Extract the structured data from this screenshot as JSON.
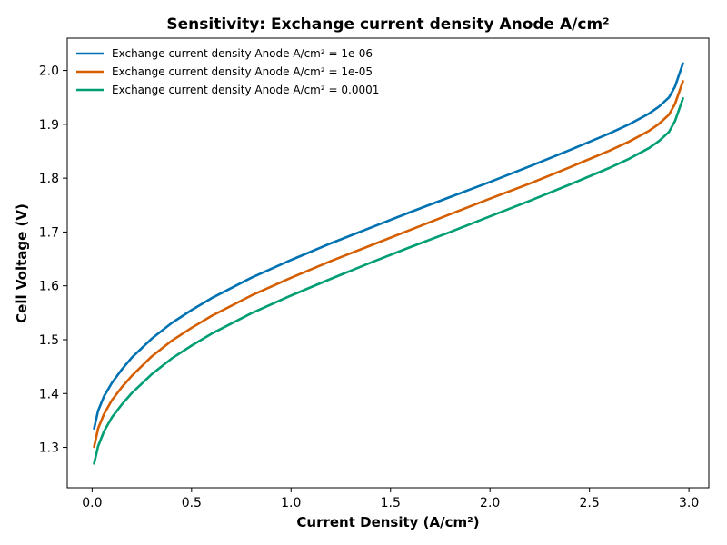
{
  "chart_data": {
    "type": "line",
    "title": "Sensitivity: Exchange current density Anode A/cm²",
    "xlabel": "Current Density (A/cm²)",
    "ylabel": "Cell Voltage (V)",
    "xlim": [
      -0.125,
      3.1
    ],
    "ylim": [
      1.225,
      2.06
    ],
    "xticks": [
      0.0,
      0.5,
      1.0,
      1.5,
      2.0,
      2.5,
      3.0
    ],
    "xtick_labels": [
      "0.0",
      "0.5",
      "1.0",
      "1.5",
      "2.0",
      "2.5",
      "3.0"
    ],
    "yticks": [
      1.3,
      1.4,
      1.5,
      1.6,
      1.7,
      1.8,
      1.9,
      2.0
    ],
    "ytick_labels": [
      "1.3",
      "1.4",
      "1.5",
      "1.6",
      "1.7",
      "1.8",
      "1.9",
      "2.0"
    ],
    "grid": false,
    "legend_position": "top-left",
    "x": [
      0.01,
      0.03,
      0.06,
      0.1,
      0.15,
      0.2,
      0.3,
      0.4,
      0.5,
      0.6,
      0.8,
      1.0,
      1.2,
      1.4,
      1.6,
      1.8,
      2.0,
      2.2,
      2.4,
      2.6,
      2.7,
      2.8,
      2.85,
      2.9,
      2.93,
      2.97
    ],
    "series": [
      {
        "name": "Exchange current density Anode A/cm² = 1e-06",
        "color": "#0072B2",
        "values": [
          1.335,
          1.368,
          1.395,
          1.42,
          1.445,
          1.467,
          1.502,
          1.531,
          1.555,
          1.577,
          1.615,
          1.648,
          1.679,
          1.708,
          1.737,
          1.765,
          1.793,
          1.822,
          1.852,
          1.883,
          1.9,
          1.92,
          1.933,
          1.95,
          1.97,
          2.013
        ]
      },
      {
        "name": "Exchange current density Anode A/cm² = 1e-05",
        "color": "#D55E00",
        "values": [
          1.301,
          1.335,
          1.362,
          1.388,
          1.412,
          1.433,
          1.469,
          1.498,
          1.522,
          1.544,
          1.582,
          1.615,
          1.646,
          1.675,
          1.704,
          1.733,
          1.762,
          1.79,
          1.82,
          1.851,
          1.868,
          1.888,
          1.901,
          1.918,
          1.938,
          1.98
        ]
      },
      {
        "name": "Exchange current density Anode A/cm² = 0.0001",
        "color": "#009E73",
        "values": [
          1.27,
          1.302,
          1.33,
          1.356,
          1.38,
          1.401,
          1.436,
          1.465,
          1.489,
          1.511,
          1.549,
          1.582,
          1.613,
          1.643,
          1.672,
          1.7,
          1.729,
          1.758,
          1.788,
          1.819,
          1.836,
          1.856,
          1.869,
          1.886,
          1.906,
          1.948
        ]
      }
    ]
  }
}
